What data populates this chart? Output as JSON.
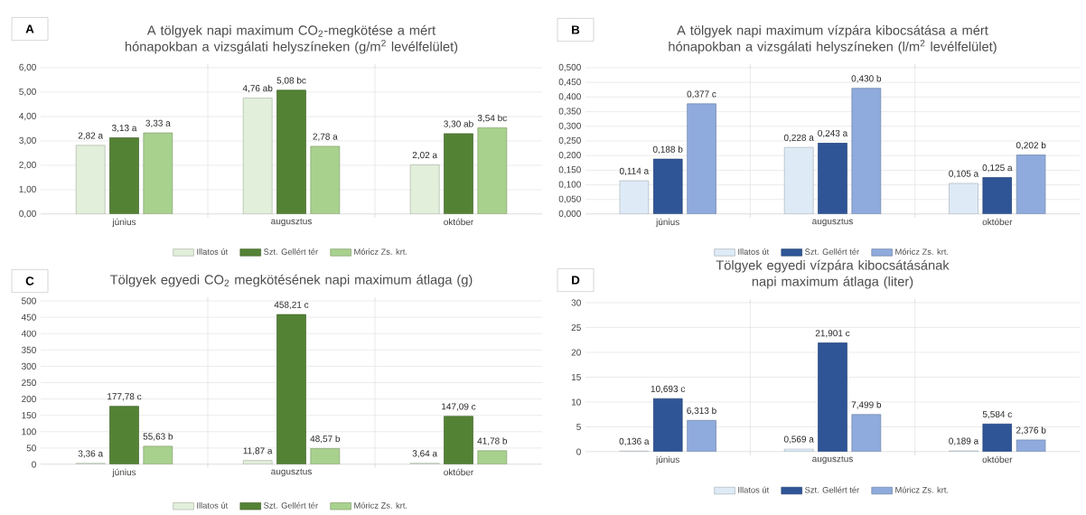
{
  "chart_data": [
    {
      "type": "bar",
      "title": "A tölgyek napi maximum CO$_{2}$-megkötése a mért hónapokban a vizsgálati helyszíneken (g/m$^{2}$ levélfelület)",
      "annotations": [
        "A"
      ],
      "categories": [
        "június",
        "augusztus",
        "október"
      ],
      "series": [
        {
          "name": "Illatos út",
          "color": "#e2efda",
          "values": [
            2.82,
            4.76,
            2.02
          ],
          "value_labels": [
            "2,82 a",
            "4,76 ab",
            "2,02 a"
          ]
        },
        {
          "name": "Szt. Gellért tér",
          "color": "#548235",
          "values": [
            3.13,
            5.08,
            3.3
          ],
          "value_labels": [
            "3,13 a",
            "5,08 bc",
            "3,30 ab"
          ]
        },
        {
          "name": "Móricz Zs. krt.",
          "color": "#a9d18e",
          "values": [
            3.33,
            2.78,
            3.54
          ],
          "value_labels": [
            "3,33 a",
            "2,78 a",
            "3,54 bc"
          ]
        }
      ],
      "ylim": [
        0,
        6
      ],
      "yticks": [
        {
          "value": 0,
          "label": "0,00"
        },
        {
          "value": 1,
          "label": "1,00"
        },
        {
          "value": 2,
          "label": "2,00"
        },
        {
          "value": 3,
          "label": "3,00"
        },
        {
          "value": 4,
          "label": "4,00"
        },
        {
          "value": 5,
          "label": "5,00"
        },
        {
          "value": 6,
          "label": "6,00"
        }
      ],
      "grid": true,
      "legend": "bottom"
    },
    {
      "type": "bar",
      "title": "A tölgyek napi maximum vízpára kibocsátása a mért hónapokban a vizsgálati helyszíneken (l/m$^{2}$ levélfelület)",
      "annotations": [
        "B"
      ],
      "categories": [
        "június",
        "augusztus",
        "október"
      ],
      "series": [
        {
          "name": "Illatos út",
          "color": "#deebf7",
          "values": [
            0.114,
            0.228,
            0.105
          ],
          "value_labels": [
            "0,114 a",
            "0,228 a",
            "0,105 a"
          ]
        },
        {
          "name": "Szt. Gellért tér",
          "color": "#2f5597",
          "values": [
            0.188,
            0.243,
            0.125
          ],
          "value_labels": [
            "0,188 b",
            "0,243 a",
            "0,125 a"
          ]
        },
        {
          "name": "Móricz Zs. krt.",
          "color": "#8faadc",
          "values": [
            0.377,
            0.43,
            0.202
          ],
          "value_labels": [
            "0,377 c",
            "0,430 b",
            "0,202 b"
          ]
        }
      ],
      "ylim": [
        0,
        0.5
      ],
      "yticks": [
        {
          "value": 0,
          "label": "0,000"
        },
        {
          "value": 0.05,
          "label": "0,050"
        },
        {
          "value": 0.1,
          "label": "0,100"
        },
        {
          "value": 0.15,
          "label": "0,150"
        },
        {
          "value": 0.2,
          "label": "0,200"
        },
        {
          "value": 0.25,
          "label": "0,250"
        },
        {
          "value": 0.3,
          "label": "0,300"
        },
        {
          "value": 0.35,
          "label": "0,350"
        },
        {
          "value": 0.4,
          "label": "0,400"
        },
        {
          "value": 0.45,
          "label": "0,450"
        },
        {
          "value": 0.5,
          "label": "0,500"
        }
      ],
      "grid": true,
      "legend": "bottom"
    },
    {
      "type": "bar",
      "title": "Tölgyek egyedi CO$_{2}$ megkötésének napi maximum átlaga (g)",
      "annotations": [
        "C"
      ],
      "categories": [
        "június",
        "augusztus",
        "október"
      ],
      "series": [
        {
          "name": "Illatos út",
          "color": "#e2efda",
          "values": [
            3.36,
            11.87,
            3.64
          ],
          "value_labels": [
            "3,36 a",
            "11,87 a",
            "3,64 a"
          ]
        },
        {
          "name": "Szt. Gellért tér",
          "color": "#548235",
          "values": [
            177.78,
            458.21,
            147.09
          ],
          "value_labels": [
            "177,78 c",
            "458,21 c",
            "147,09 c"
          ]
        },
        {
          "name": "Móricz Zs. krt.",
          "color": "#a9d18e",
          "values": [
            55.63,
            48.57,
            41.78
          ],
          "value_labels": [
            "55,63 b",
            "48,57 b",
            "41,78 b"
          ]
        }
      ],
      "ylim": [
        0,
        500
      ],
      "yticks": [
        0,
        50,
        100,
        150,
        200,
        250,
        300,
        350,
        400,
        450,
        500
      ],
      "grid": true,
      "legend": "bottom"
    },
    {
      "type": "bar",
      "title": "Tölgyek egyedi vízpára kibocsátásának napi maximum átlaga (liter)",
      "annotations": [
        "D"
      ],
      "categories": [
        "június",
        "augusztus",
        "október"
      ],
      "series": [
        {
          "name": "Illatos út",
          "color": "#deebf7",
          "values": [
            0.136,
            0.569,
            0.189
          ],
          "value_labels": [
            "0,136 a",
            "0,569 a",
            "0,189 a"
          ]
        },
        {
          "name": "Szt. Gellért tér",
          "color": "#2f5597",
          "values": [
            10.693,
            21.901,
            5.584
          ],
          "value_labels": [
            "10,693 c",
            "21,901 c",
            "5,584 c"
          ]
        },
        {
          "name": "Móricz Zs. krt.",
          "color": "#8faadc",
          "values": [
            6.313,
            7.499,
            2.376
          ],
          "value_labels": [
            "6,313 b",
            "7,499 b",
            "2,376 b"
          ]
        }
      ],
      "ylim": [
        0,
        30
      ],
      "yticks": [
        0,
        5,
        10,
        15,
        20,
        25,
        30
      ],
      "grid": true,
      "legend": "bottom"
    }
  ]
}
